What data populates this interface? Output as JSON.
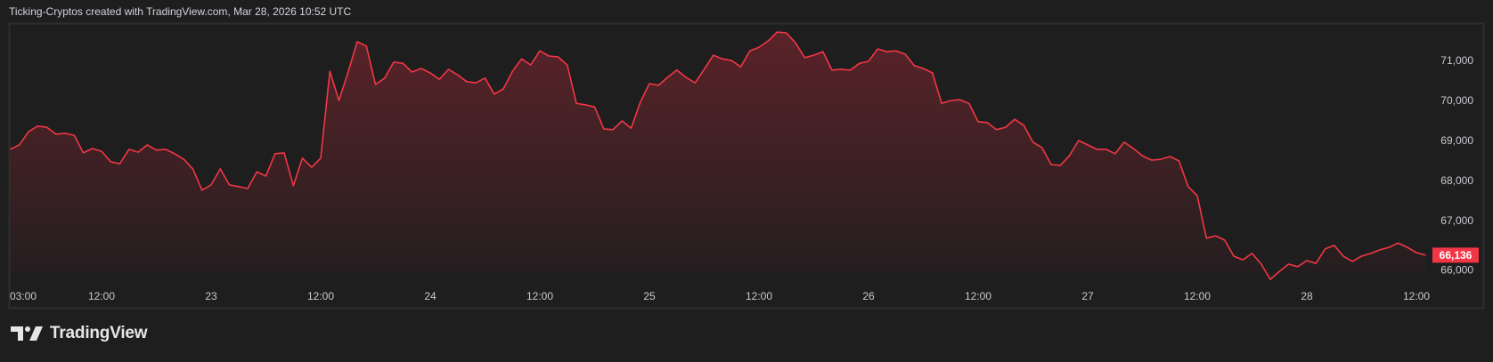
{
  "header": {
    "title": "Ticking-Cryptos created with TradingView.com, Mar 28, 2026 10:52 UTC"
  },
  "logo": {
    "text": "TradingView"
  },
  "colors": {
    "background": "#1e1e1e",
    "line": "#f23645",
    "area_top": "#5a2329",
    "area_bottom": "#231e1f",
    "frame": "#2e2e2e",
    "label_bg": "#f23645"
  },
  "chart_data": {
    "type": "area",
    "title": "",
    "xlabel": "",
    "ylabel": "",
    "interval": "1h",
    "x_start": "2026-03-22 02:00",
    "x_end": "2026-03-28 13:00",
    "ylim": [
      65450,
      71900
    ],
    "grid": false,
    "values": [
      68780,
      68890,
      69220,
      69360,
      69330,
      69160,
      69180,
      69130,
      68690,
      68800,
      68730,
      68470,
      68420,
      68780,
      68710,
      68890,
      68760,
      68780,
      68670,
      68530,
      68290,
      67760,
      67890,
      68290,
      67890,
      67850,
      67800,
      68220,
      68110,
      68670,
      68690,
      67870,
      68560,
      68330,
      68560,
      70730,
      70000,
      70710,
      71470,
      71360,
      70400,
      70560,
      70960,
      70930,
      70710,
      70800,
      70690,
      70530,
      70780,
      70640,
      70470,
      70440,
      70560,
      70160,
      70290,
      70730,
      71040,
      70890,
      71240,
      71110,
      71090,
      70890,
      69930,
      69890,
      69840,
      69290,
      69270,
      69490,
      69310,
      69960,
      70420,
      70380,
      70580,
      70760,
      70580,
      70440,
      70780,
      71130,
      71040,
      71000,
      70840,
      71240,
      71330,
      71490,
      71710,
      71690,
      71440,
      71070,
      71130,
      71220,
      70760,
      70780,
      70760,
      70930,
      70980,
      71290,
      71220,
      71240,
      71160,
      70870,
      70800,
      70690,
      69930,
      70000,
      70020,
      69930,
      69470,
      69450,
      69270,
      69330,
      69530,
      69380,
      68960,
      68820,
      68400,
      68380,
      68620,
      69000,
      68890,
      68780,
      68780,
      68670,
      68960,
      68800,
      68620,
      68510,
      68530,
      68600,
      68490,
      67850,
      67620,
      66560,
      66620,
      66510,
      66110,
      66020,
      66180,
      65910,
      65530,
      65730,
      65910,
      65850,
      66000,
      65930,
      66290,
      66380,
      66110,
      65980,
      66110,
      66180,
      66270,
      66330,
      66440,
      66330,
      66200,
      66136
    ],
    "last_price": {
      "value": 66136,
      "label": "66,136"
    },
    "y_ticks": [
      {
        "value": 71000,
        "label": "71,000"
      },
      {
        "value": 70000,
        "label": "70,000"
      },
      {
        "value": 69000,
        "label": "69,000"
      },
      {
        "value": 68000,
        "label": "68,000"
      },
      {
        "value": 67000,
        "label": "67,000"
      },
      {
        "value": 66000,
        "label": "66,000"
      }
    ],
    "x_ticks": [
      {
        "time": "2026-03-22 03:00",
        "label": "03:00"
      },
      {
        "time": "2026-03-22 12:00",
        "label": "12:00"
      },
      {
        "time": "2026-03-23 00:00",
        "label": "23"
      },
      {
        "time": "2026-03-23 12:00",
        "label": "12:00"
      },
      {
        "time": "2026-03-24 00:00",
        "label": "24"
      },
      {
        "time": "2026-03-24 12:00",
        "label": "12:00"
      },
      {
        "time": "2026-03-25 00:00",
        "label": "25"
      },
      {
        "time": "2026-03-25 12:00",
        "label": "12:00"
      },
      {
        "time": "2026-03-26 00:00",
        "label": "26"
      },
      {
        "time": "2026-03-26 12:00",
        "label": "12:00"
      },
      {
        "time": "2026-03-27 00:00",
        "label": "27"
      },
      {
        "time": "2026-03-27 12:00",
        "label": "12:00"
      },
      {
        "time": "2026-03-28 00:00",
        "label": "28"
      },
      {
        "time": "2026-03-28 12:00",
        "label": "12:00"
      }
    ]
  }
}
